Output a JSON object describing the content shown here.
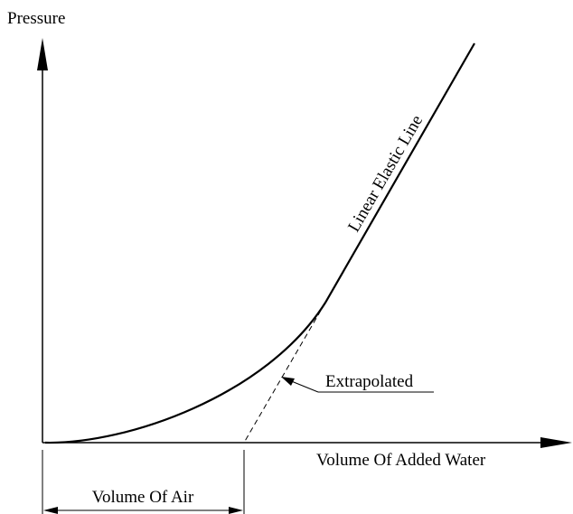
{
  "axes": {
    "y_label": "Pressure",
    "x_label": "Volume Of Added Water"
  },
  "labels": {
    "line": "Linear Elastic Line",
    "extrapolated": "Extrapolated",
    "air": "Volume Of Air"
  }
}
